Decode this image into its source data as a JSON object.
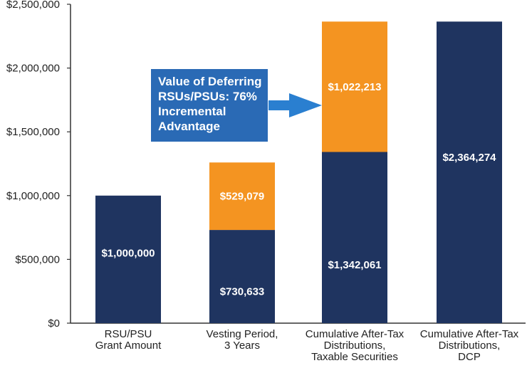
{
  "chart_data": {
    "type": "bar",
    "stacked": true,
    "categories": [
      [
        "RSU/PSU",
        "Grant Amount"
      ],
      [
        "Vesting Period,",
        "3 Years"
      ],
      [
        "Cumulative After-Tax",
        "Distributions,",
        "Taxable Securities"
      ],
      [
        "Cumulative After-Tax",
        "Distributions,",
        "DCP"
      ]
    ],
    "series": [
      {
        "color": "#1f3460",
        "values": [
          1000000,
          730633,
          1342061,
          2364274
        ],
        "labels": [
          "$1,000,000",
          "$730,633",
          "$1,342,061",
          "$2,364,274"
        ]
      },
      {
        "color": "#f49421",
        "values": [
          0,
          529079,
          1022213,
          0
        ],
        "labels": [
          "",
          "$529,079",
          "$1,022,213",
          ""
        ]
      }
    ],
    "ylim": [
      0,
      2500000
    ],
    "yticks": [
      0,
      500000,
      1000000,
      1500000,
      2000000,
      2500000
    ],
    "ytick_labels": [
      "$0",
      "$500,000",
      "$1,000,000",
      "$1,500,000",
      "$2,000,000",
      "$2,500,000"
    ],
    "title": "",
    "xlabel": "",
    "ylabel": "",
    "grid": false,
    "annotation": {
      "lines": [
        "Value of Deferring",
        "RSUs/PSUs: 76%",
        "Incremental",
        "Advantage"
      ],
      "box_color": "#2a6ab5",
      "arrow_color": "#2a7fd0",
      "points_to_category": 2
    }
  }
}
